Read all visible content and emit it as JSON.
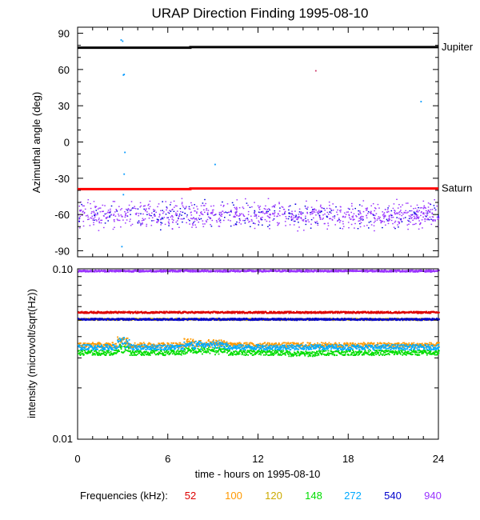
{
  "chart_data": [
    {
      "type": "scatter",
      "title": "URAP Direction Finding  1995-08-10",
      "ylabel": "Azimuthal angle (deg)",
      "ylim": [
        -95,
        95
      ],
      "yticks": [
        90,
        60,
        30,
        0,
        -30,
        -60,
        -90
      ],
      "xlim": [
        0,
        24
      ],
      "reference_lines": [
        {
          "name": "Jupiter",
          "color": "#000000",
          "points": [
            [
              0,
              78
            ],
            [
              7.5,
              78
            ],
            [
              7.5,
              78.5
            ],
            [
              24,
              78.5
            ]
          ]
        },
        {
          "name": "Saturn",
          "color": "#ff0000",
          "points": [
            [
              0,
              -39
            ],
            [
              7.5,
              -39
            ],
            [
              7.5,
              -38.5
            ],
            [
              24,
              -38.5
            ]
          ]
        }
      ],
      "scatter_band": {
        "center": -60,
        "halfwidth": 12,
        "colors": [
          "#9933ff",
          "#0000dd"
        ]
      },
      "outliers": [
        {
          "x": 2.85,
          "y": 85,
          "color": "#0099ff"
        },
        {
          "x": 2.95,
          "y": 84,
          "color": "#0099ff"
        },
        {
          "x": 3.0,
          "y": 56,
          "color": "#0099ff"
        },
        {
          "x": 3.05,
          "y": 56.5,
          "color": "#0099ff"
        },
        {
          "x": 3.1,
          "y": -8,
          "color": "#0099ff"
        },
        {
          "x": 3.05,
          "y": -26,
          "color": "#0099ff"
        },
        {
          "x": 9.1,
          "y": -18,
          "color": "#0099ff"
        },
        {
          "x": 15.8,
          "y": 59.5,
          "color": "#cc3366"
        },
        {
          "x": 22.8,
          "y": 34,
          "color": "#0099ff"
        },
        {
          "x": 2.9,
          "y": -86,
          "color": "#0099ff"
        },
        {
          "x": 3.0,
          "y": -43,
          "color": "#0099ff"
        }
      ]
    },
    {
      "type": "line",
      "ylabel": "intensity (microvolt/sqrt(Hz))",
      "yscale": "log",
      "ylim": [
        0.01,
        0.1
      ],
      "ytick_labels": [
        "0.10",
        "0.01"
      ],
      "xlim": [
        0,
        24
      ],
      "xticks": [
        0,
        6,
        12,
        18,
        24
      ],
      "xlabel": "time - hours on 1995-08-10",
      "series": [
        {
          "name": "52",
          "color": "#dd0000",
          "level": 0.056
        },
        {
          "name": "100",
          "color": "#ff9900",
          "level": 0.036
        },
        {
          "name": "120",
          "color": "#ccaa00",
          "level": 0.051
        },
        {
          "name": "148",
          "color": "#00dd00",
          "level": 0.0325
        },
        {
          "name": "272",
          "color": "#00aaff",
          "level": 0.035
        },
        {
          "name": "540",
          "color": "#0000cc",
          "level": 0.051
        },
        {
          "name": "940",
          "color": "#9933ff",
          "level": 0.098
        }
      ],
      "legend_label": "Frequencies (kHz):"
    }
  ]
}
